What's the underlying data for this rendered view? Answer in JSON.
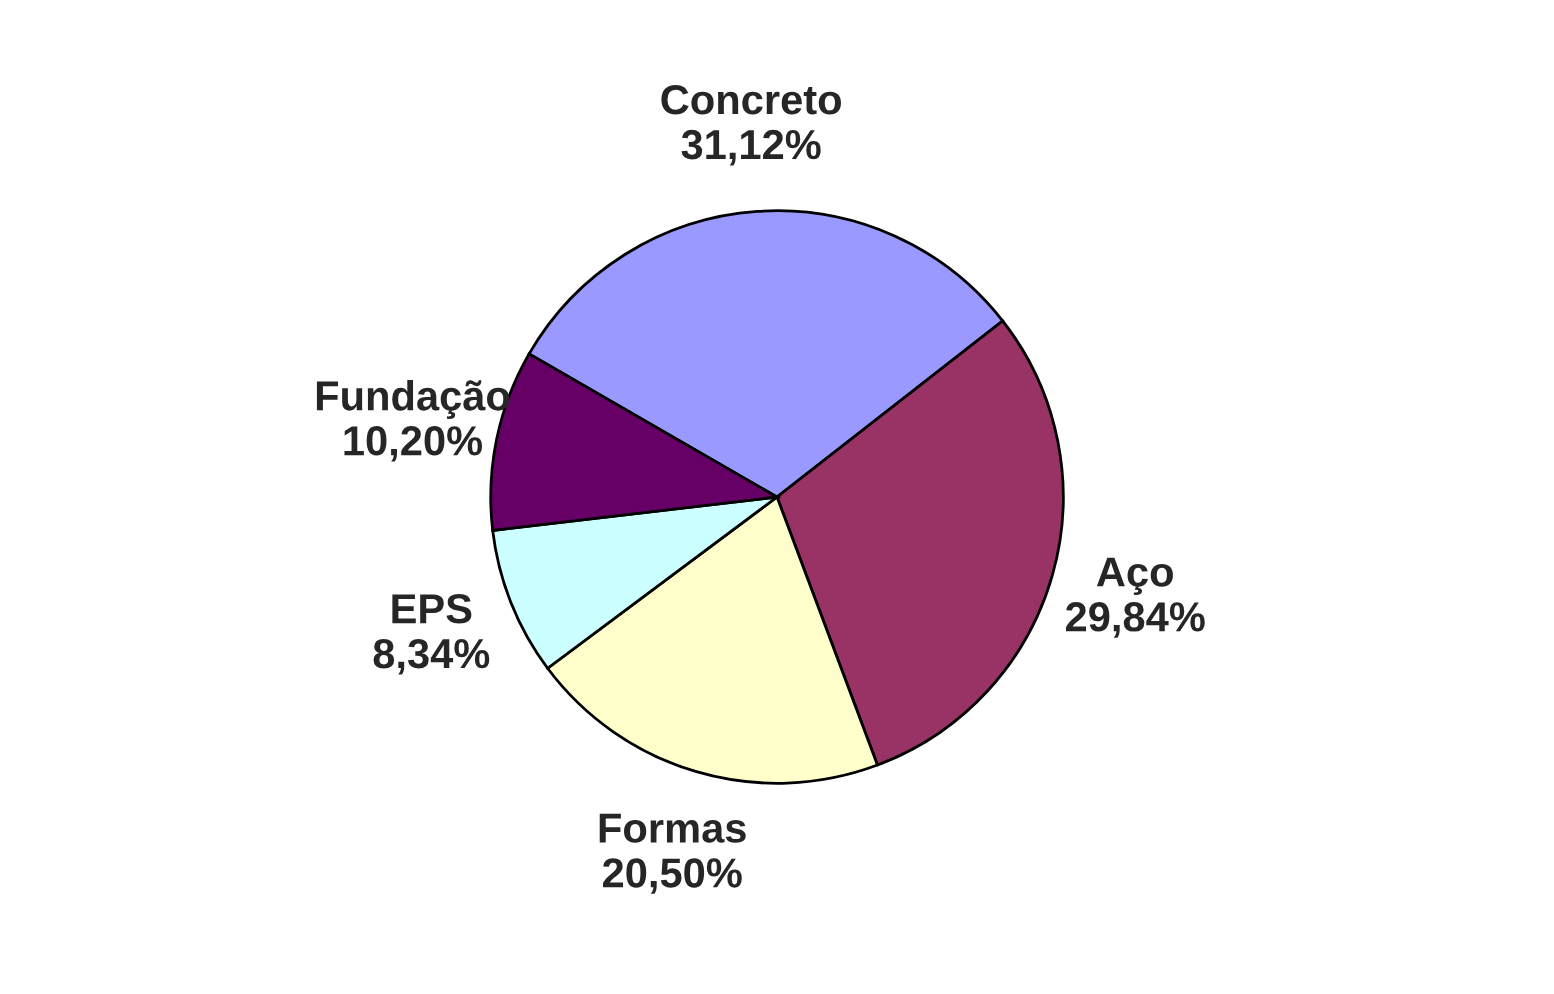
{
  "chart_data": {
    "type": "pie",
    "categories": [
      "Concreto",
      "Aço",
      "Formas",
      "EPS",
      "Fundação"
    ],
    "values": [
      31.12,
      29.84,
      20.5,
      8.34,
      10.2
    ],
    "value_labels": [
      "31,12%",
      "29,84%",
      "20,50%",
      "8,34%",
      "10,20%"
    ],
    "colors": [
      "#9999ff",
      "#993366",
      "#ffffcc",
      "#ccffff",
      "#660066"
    ],
    "legend": false
  }
}
